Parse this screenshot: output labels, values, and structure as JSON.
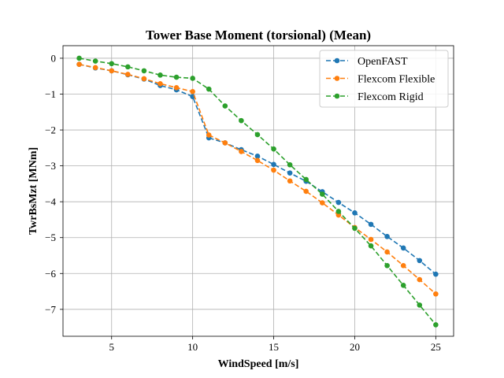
{
  "chart_data": {
    "type": "line",
    "title": "Tower Base Moment (torsional) (Mean)",
    "xlabel": "WindSpeed [m/s]",
    "ylabel": "TwrBsMzt [MNm]",
    "xlim": [
      2.0,
      26.1
    ],
    "ylim": [
      -7.75,
      0.35
    ],
    "xticks": [
      5,
      10,
      15,
      20,
      25
    ],
    "yticks": [
      0,
      -1,
      -2,
      -3,
      -4,
      -5,
      -6,
      -7
    ],
    "xtick_labels": [
      "5",
      "10",
      "15",
      "20",
      "25"
    ],
    "ytick_labels": [
      "0",
      "−1",
      "−2",
      "−3",
      "−4",
      "−5",
      "−6",
      "−7"
    ],
    "grid": true,
    "legend_position": "top-right",
    "x": [
      3,
      4,
      5,
      6,
      7,
      8,
      9,
      10,
      11,
      12,
      13,
      14,
      15,
      16,
      17,
      18,
      19,
      20,
      21,
      22,
      23,
      24,
      25
    ],
    "series": [
      {
        "name": "OpenFAST",
        "color": "#1f77b4",
        "values": [
          -0.17,
          -0.27,
          -0.35,
          -0.46,
          -0.58,
          -0.76,
          -0.88,
          -1.07,
          -2.22,
          -2.36,
          -2.55,
          -2.73,
          -2.96,
          -3.2,
          -3.43,
          -3.72,
          -4.02,
          -4.31,
          -4.63,
          -4.97,
          -5.29,
          -5.64,
          -6.02
        ]
      },
      {
        "name": "Flexcom Flexible",
        "color": "#ff7f0e",
        "values": [
          -0.17,
          -0.26,
          -0.35,
          -0.45,
          -0.57,
          -0.71,
          -0.82,
          -0.93,
          -2.14,
          -2.36,
          -2.6,
          -2.85,
          -3.12,
          -3.42,
          -3.71,
          -4.03,
          -4.37,
          -4.72,
          -5.05,
          -5.4,
          -5.78,
          -6.17,
          -6.57
        ]
      },
      {
        "name": "Flexcom Rigid",
        "color": "#2ca02c",
        "values": [
          0.0,
          -0.08,
          -0.15,
          -0.24,
          -0.35,
          -0.47,
          -0.53,
          -0.56,
          -0.86,
          -1.33,
          -1.74,
          -2.13,
          -2.53,
          -2.97,
          -3.38,
          -3.79,
          -4.27,
          -4.74,
          -5.23,
          -5.78,
          -6.33,
          -6.88,
          -7.43
        ]
      }
    ]
  }
}
